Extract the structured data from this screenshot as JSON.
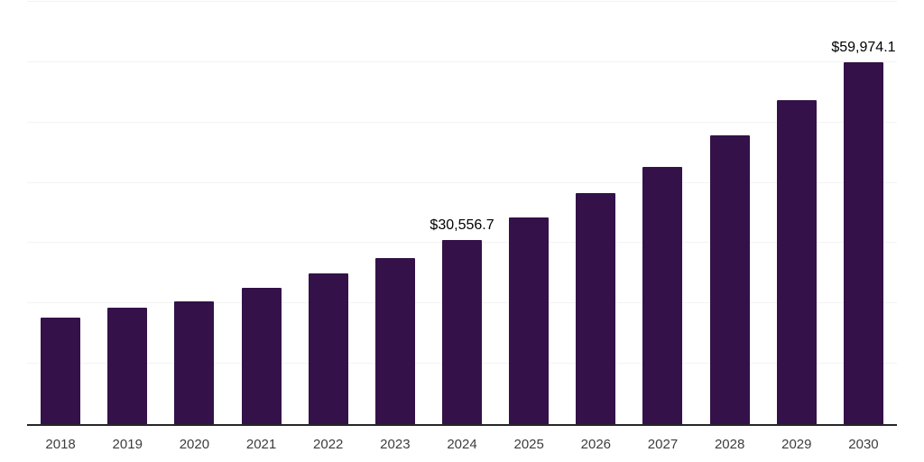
{
  "chart_data": {
    "type": "bar",
    "title": "",
    "xlabel": "",
    "ylabel": "",
    "categories": [
      "2018",
      "2019",
      "2020",
      "2021",
      "2022",
      "2023",
      "2024",
      "2025",
      "2026",
      "2027",
      "2028",
      "2029",
      "2030"
    ],
    "values": [
      17600,
      19300,
      20300,
      22600,
      25000,
      27500,
      30556.7,
      34200,
      38300,
      42600,
      47900,
      53700,
      59974.1
    ],
    "point_labels": [
      "",
      "",
      "",
      "",
      "",
      "",
      "$30,556.7",
      "",
      "",
      "",
      "",
      "",
      "$59,974.1"
    ],
    "ylim": [
      0,
      70000
    ],
    "grid_interval": 10000,
    "grid_on": true,
    "legend_position": "none",
    "colors": {
      "bar": "#341148",
      "axis_line": "#262626",
      "gridline": "#f2f2f2",
      "tick_label": "#3d3d3d",
      "data_label": "#000000",
      "background": "#ffffff"
    }
  }
}
